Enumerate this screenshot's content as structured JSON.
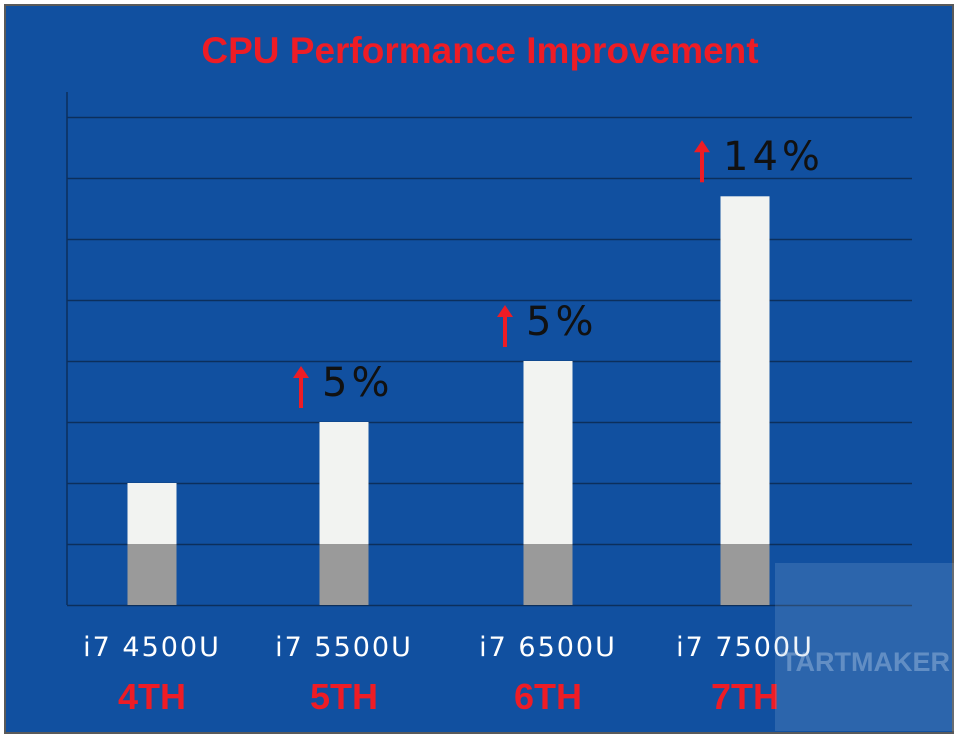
{
  "chart_data": {
    "type": "bar",
    "title": "CPU Performance Improvement",
    "categories": [
      "i7 4500U",
      "i7 5500U",
      "i7 6500U",
      "i7 7500U"
    ],
    "generations": [
      "4TH",
      "5TH",
      "6TH",
      "7TH"
    ],
    "values": [
      2,
      3,
      4,
      6.7
    ],
    "baseline": 1,
    "increase_labels": [
      "",
      "5%",
      "5%",
      "14%"
    ],
    "ylim": [
      0,
      8
    ],
    "grid": true,
    "legend": "none"
  },
  "colors": {
    "background": "#1150a0",
    "bar": "#f2f3f1",
    "bar_base": "#9a9a9a",
    "gridline": "#0c2f5c",
    "title": "#ee1c25",
    "arrow": "#ee1c25"
  },
  "watermark": {
    "text": "TARTMAKER"
  }
}
